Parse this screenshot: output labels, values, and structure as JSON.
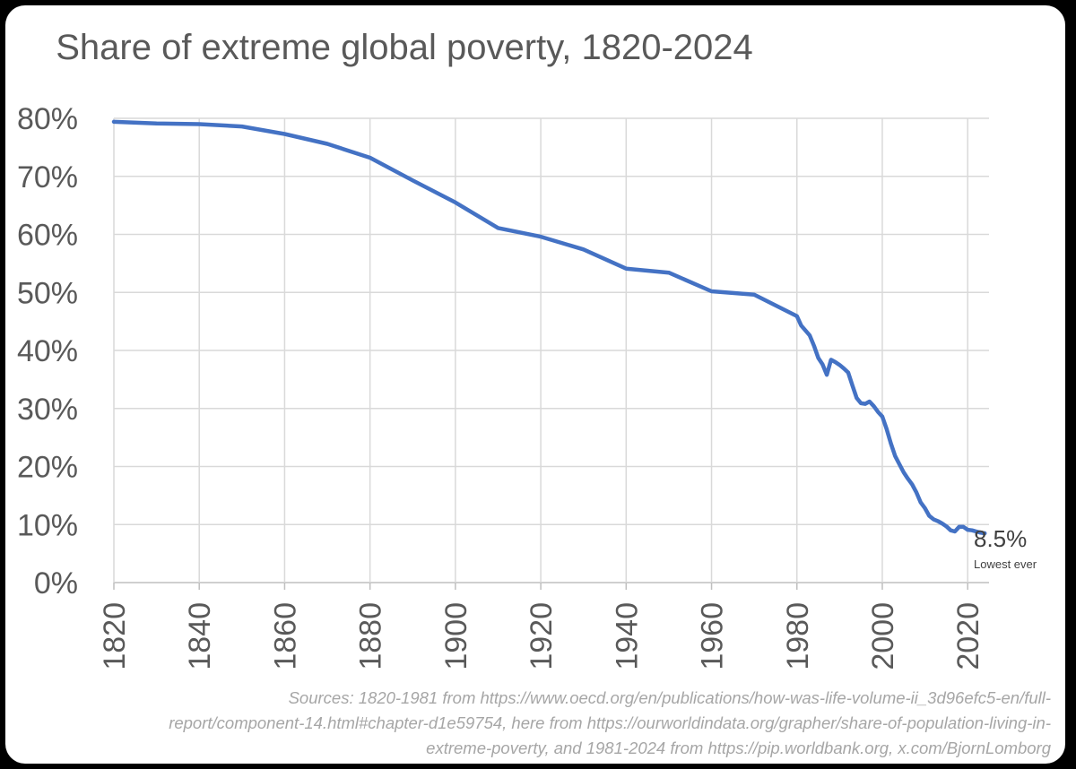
{
  "chart_data": {
    "type": "line",
    "title": "Share of extreme global poverty, 1820-2024",
    "xlabel": "",
    "ylabel": "",
    "xlim": [
      1820,
      2025
    ],
    "ylim": [
      0,
      80
    ],
    "y_ticks": [
      "0%",
      "10%",
      "20%",
      "30%",
      "40%",
      "50%",
      "60%",
      "70%",
      "80%"
    ],
    "x_ticks": [
      "1820",
      "1840",
      "1860",
      "1880",
      "1900",
      "1920",
      "1940",
      "1960",
      "1980",
      "2000",
      "2020"
    ],
    "grid": true,
    "legend": "none",
    "series": [
      {
        "color": "#4472c4",
        "x": [
          1820,
          1830,
          1840,
          1850,
          1860,
          1870,
          1880,
          1890,
          1900,
          1910,
          1920,
          1930,
          1940,
          1950,
          1960,
          1970,
          1980,
          1981,
          1983,
          1984,
          1985,
          1986,
          1987,
          1988,
          1989,
          1990,
          1991,
          1992,
          1993,
          1994,
          1995,
          1996,
          1997,
          1998,
          1999,
          2000,
          2001,
          2002,
          2003,
          2004,
          2005,
          2006,
          2007,
          2008,
          2009,
          2010,
          2011,
          2012,
          2013,
          2014,
          2015,
          2016,
          2017,
          2018,
          2019,
          2020,
          2021,
          2022,
          2023,
          2024
        ],
        "values": [
          79.4,
          79.1,
          79.0,
          78.6,
          77.3,
          75.6,
          73.2,
          69.3,
          65.5,
          61.1,
          59.6,
          57.4,
          54.1,
          53.4,
          50.2,
          49.6,
          45.9,
          44.3,
          42.6,
          40.8,
          38.7,
          37.6,
          35.8,
          38.4,
          38.0,
          37.5,
          36.9,
          36.2,
          34.0,
          31.8,
          30.9,
          30.8,
          31.2,
          30.4,
          29.4,
          28.6,
          26.5,
          24.0,
          21.8,
          20.4,
          19.0,
          17.9,
          16.9,
          15.5,
          13.8,
          12.8,
          11.5,
          10.9,
          10.6,
          10.2,
          9.7,
          9.0,
          8.8,
          9.6,
          9.6,
          9.1,
          9.0,
          8.8,
          8.6,
          8.5
        ]
      }
    ],
    "annotations": [
      {
        "text": "8.5%"
      },
      {
        "text": "Lowest ever"
      }
    ],
    "source": [
      "Sources: 1820-1981 from https://www.oecd.org/en/publications/how-was-life-volume-ii_3d96efc5-en/full-",
      "report/component-14.html#chapter-d1e59754, here from https://ourworldindata.org/grapher/share-of-population-living-in-",
      "extreme-poverty, and 1981-2024 from https://pip.worldbank.org, x.com/BjornLomborg"
    ]
  }
}
